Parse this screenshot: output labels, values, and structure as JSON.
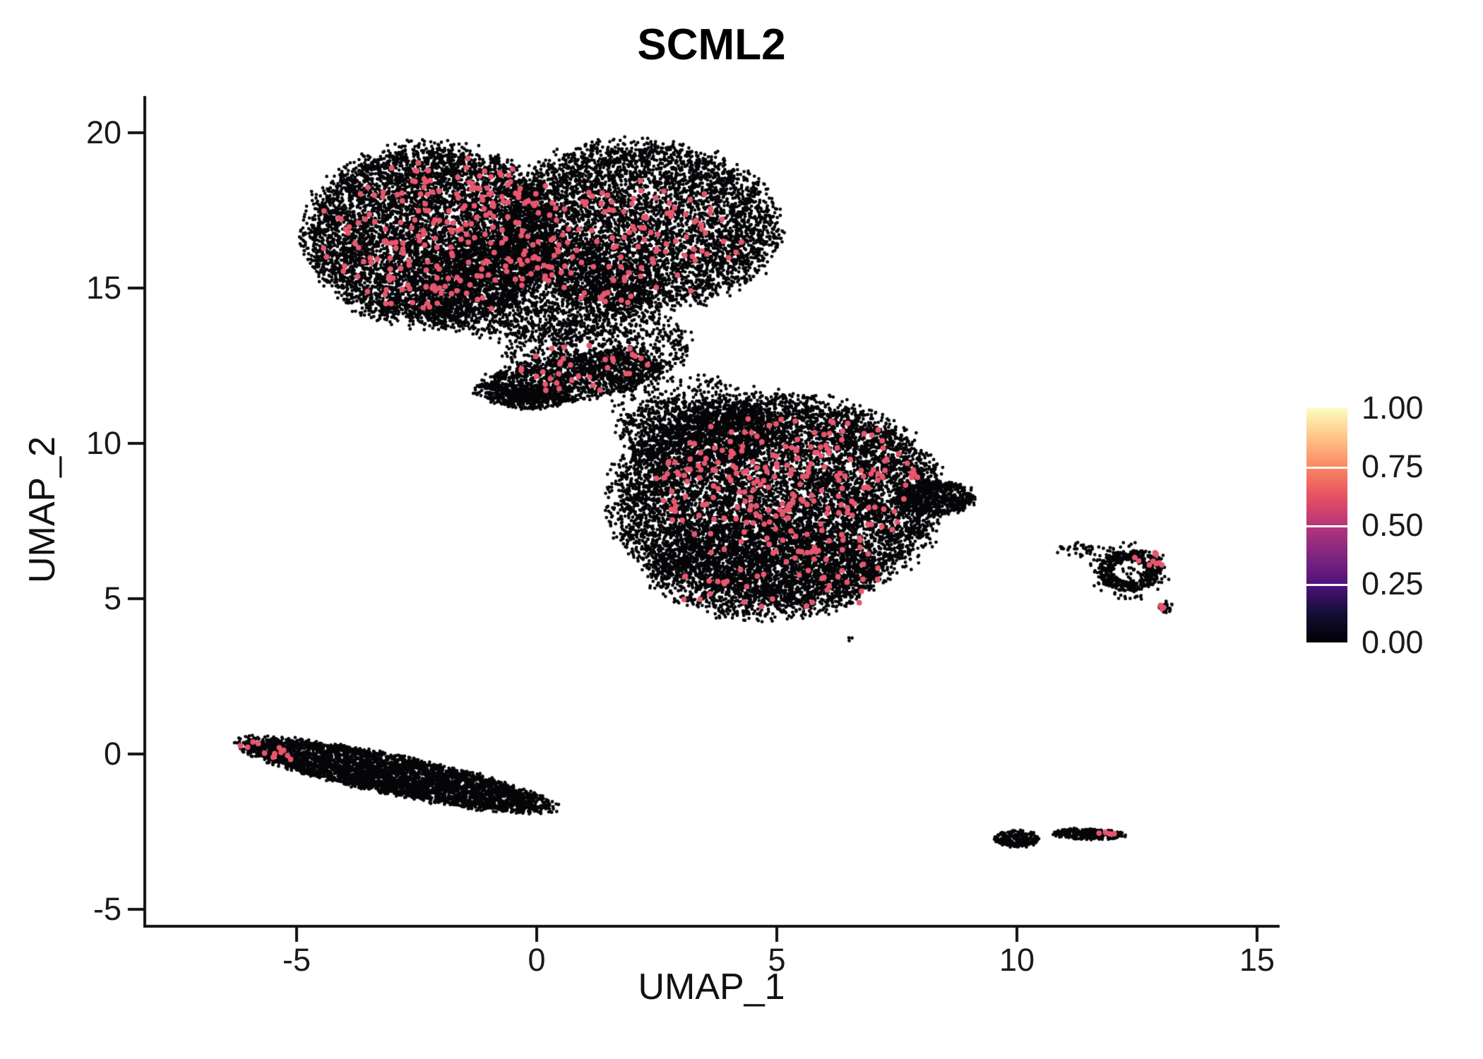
{
  "title": "SCML2",
  "chart_data": {
    "type": "scatter",
    "title": "SCML2",
    "xlabel": "UMAP_1",
    "ylabel": "UMAP_2",
    "xlim": [
      -8.1,
      15.4
    ],
    "ylim": [
      -5.5,
      21.2
    ],
    "grid": false,
    "legend_position": "right",
    "x_ticks": [
      {
        "v": -5,
        "label": "-5"
      },
      {
        "v": 0,
        "label": "0"
      },
      {
        "v": 5,
        "label": "5"
      },
      {
        "v": 10,
        "label": "10"
      },
      {
        "v": 15,
        "label": "15"
      }
    ],
    "y_ticks": [
      {
        "v": 20,
        "label": "20"
      },
      {
        "v": 15,
        "label": "15"
      },
      {
        "v": 10,
        "label": "10"
      },
      {
        "v": 5,
        "label": "5"
      },
      {
        "v": 0,
        "label": "0"
      },
      {
        "v": -5,
        "label": "-5"
      }
    ],
    "point_color_low": "#050508",
    "point_color_high": "#E8566D",
    "axis_color": "#111111",
    "colorbar": {
      "labels": [
        "1.00",
        "0.75",
        "0.50",
        "0.25",
        "0.00"
      ],
      "range": [
        0,
        1
      ],
      "gradient_bottom_to_top": [
        "#000004",
        "#140E36",
        "#51127C",
        "#832681",
        "#B63679",
        "#E65164",
        "#FB8861",
        "#FEC488",
        "#FCFDBF"
      ]
    },
    "clusters": [
      {
        "name": "top-left-lobe",
        "role": "base",
        "shape": "disk",
        "cx": -2.2,
        "cy": 16.7,
        "rx": 2.6,
        "ry": 2.9,
        "rot": 0,
        "n": 6500
      },
      {
        "name": "top-right-lobe",
        "role": "base",
        "shape": "disk",
        "cx": 2.1,
        "cy": 17.0,
        "rx": 2.9,
        "ry": 2.7,
        "rot": -8,
        "n": 5500
      },
      {
        "name": "top-center-lower",
        "role": "base",
        "shape": "disk",
        "cx": -0.2,
        "cy": 15.0,
        "rx": 2.6,
        "ry": 1.7,
        "rot": 0,
        "n": 2200
      },
      {
        "name": "bridge-sparse",
        "role": "base",
        "shape": "disk",
        "cx": 1.7,
        "cy": 13.2,
        "rx": 1.5,
        "ry": 1.2,
        "rot": 0,
        "n": 650
      },
      {
        "name": "bridge-sparse-west",
        "role": "base",
        "shape": "disk",
        "cx": 0.1,
        "cy": 12.9,
        "rx": 0.8,
        "ry": 0.6,
        "rot": 0,
        "n": 120
      },
      {
        "name": "bridge-strip",
        "role": "base",
        "shape": "disk",
        "cx": 0.7,
        "cy": 12.1,
        "rx": 2.0,
        "ry": 0.75,
        "rot": 12,
        "n": 1400
      },
      {
        "name": "bridge-strip-low",
        "role": "base",
        "shape": "disk",
        "cx": -0.15,
        "cy": 11.5,
        "rx": 0.8,
        "ry": 0.4,
        "rot": 0,
        "n": 350
      },
      {
        "name": "mid-upper-scatter",
        "role": "base",
        "shape": "disk",
        "cx": 3.2,
        "cy": 11.2,
        "rx": 1.6,
        "ry": 1.0,
        "rot": 0,
        "n": 300
      },
      {
        "name": "mid-main",
        "role": "base",
        "shape": "disk",
        "cx": 5.0,
        "cy": 8.2,
        "rx": 3.4,
        "ry": 3.3,
        "rot": 0,
        "n": 9500
      },
      {
        "name": "mid-lower",
        "role": "base",
        "shape": "disk",
        "cx": 4.7,
        "cy": 5.9,
        "rx": 2.4,
        "ry": 1.6,
        "rot": 0,
        "n": 1800
      },
      {
        "name": "mid-upper-left",
        "role": "base",
        "shape": "disk",
        "cx": 3.4,
        "cy": 10.4,
        "rx": 1.7,
        "ry": 1.1,
        "rot": 0,
        "n": 900
      },
      {
        "name": "mid-right-tail",
        "role": "base",
        "shape": "disk",
        "cx": 8.3,
        "cy": 8.25,
        "rx": 0.85,
        "ry": 0.55,
        "rot": 0,
        "n": 550
      },
      {
        "name": "bottom-left-stripe",
        "role": "base",
        "shape": "disk",
        "cx": -2.95,
        "cy": -0.68,
        "rx": 3.4,
        "ry": 0.62,
        "rot": -18,
        "n": 4200
      },
      {
        "name": "right-ring",
        "role": "base",
        "shape": "ring",
        "cx": 12.35,
        "cy": 5.9,
        "r0": 0.5,
        "w": 0.3,
        "rot": 0,
        "n": 420
      },
      {
        "name": "right-ring-halo",
        "role": "base",
        "shape": "disk",
        "cx": 12.35,
        "cy": 5.9,
        "rx": 0.85,
        "ry": 0.95,
        "rot": 0,
        "n": 160
      },
      {
        "name": "right-ring-west",
        "role": "base",
        "shape": "disk",
        "cx": 11.3,
        "cy": 6.6,
        "rx": 0.5,
        "ry": 0.25,
        "rot": 0,
        "n": 35
      },
      {
        "name": "right-ring-tip",
        "role": "base",
        "shape": "disk",
        "cx": 13.1,
        "cy": 4.75,
        "rx": 0.15,
        "ry": 0.2,
        "rot": 0,
        "n": 25
      },
      {
        "name": "small-bottom-1",
        "role": "base",
        "shape": "disk",
        "cx": 10.0,
        "cy": -2.72,
        "rx": 0.45,
        "ry": 0.28,
        "rot": 0,
        "n": 240
      },
      {
        "name": "small-bottom-2",
        "role": "base",
        "shape": "disk",
        "cx": 11.5,
        "cy": -2.58,
        "rx": 0.75,
        "ry": 0.18,
        "rot": -3,
        "n": 280
      },
      {
        "name": "isolated-dot",
        "role": "base",
        "shape": "disk",
        "cx": 6.55,
        "cy": 3.7,
        "rx": 0.1,
        "ry": 0.08,
        "rot": 0,
        "n": 3
      },
      {
        "name": "hl-top-left",
        "role": "highlight",
        "shape": "disk",
        "cx": -1.8,
        "cy": 16.7,
        "rx": 2.6,
        "ry": 2.4,
        "rot": 0,
        "n": 230
      },
      {
        "name": "hl-top-right",
        "role": "highlight",
        "shape": "disk",
        "cx": 1.9,
        "cy": 16.4,
        "rx": 2.4,
        "ry": 2.0,
        "rot": 0,
        "n": 120
      },
      {
        "name": "hl-bridge",
        "role": "highlight",
        "shape": "disk",
        "cx": 0.9,
        "cy": 12.5,
        "rx": 1.7,
        "ry": 0.9,
        "rot": 10,
        "n": 34
      },
      {
        "name": "hl-mid",
        "role": "highlight",
        "shape": "disk",
        "cx": 5.2,
        "cy": 8.6,
        "rx": 2.9,
        "ry": 2.3,
        "rot": 0,
        "n": 240
      },
      {
        "name": "hl-mid-lower",
        "role": "highlight",
        "shape": "disk",
        "cx": 5.0,
        "cy": 5.7,
        "rx": 2.3,
        "ry": 1.2,
        "rot": 0,
        "n": 40
      },
      {
        "name": "hl-stripe-west",
        "role": "highlight",
        "shape": "disk",
        "cx": -5.55,
        "cy": 0.1,
        "rx": 0.7,
        "ry": 0.25,
        "rot": -15,
        "n": 13
      },
      {
        "name": "hl-ring-east",
        "role": "highlight",
        "shape": "disk",
        "cx": 12.8,
        "cy": 6.3,
        "rx": 0.35,
        "ry": 0.3,
        "rot": 0,
        "n": 9
      },
      {
        "name": "hl-ring-tip",
        "role": "highlight",
        "shape": "disk",
        "cx": 13.05,
        "cy": 4.75,
        "rx": 0.1,
        "ry": 0.1,
        "rot": 0,
        "n": 3
      },
      {
        "name": "hl-small-b2",
        "role": "highlight",
        "shape": "disk",
        "cx": 11.85,
        "cy": -2.55,
        "rx": 0.2,
        "ry": 0.07,
        "rot": 0,
        "n": 5
      }
    ]
  }
}
